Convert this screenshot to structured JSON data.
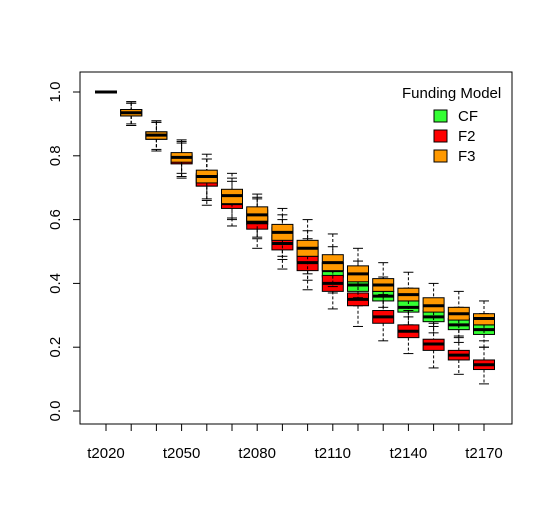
{
  "chart_data": {
    "type": "boxplot",
    "title": "",
    "xlabel": "",
    "ylabel": "",
    "ylim": [
      0,
      1
    ],
    "y_ticks": [
      0.0,
      0.2,
      0.4,
      0.6,
      0.8,
      1.0
    ],
    "y_tick_labels": [
      "0.0",
      "0.2",
      "0.4",
      "0.6",
      "0.8",
      "1.0"
    ],
    "x_categories": [
      "t2020",
      "t2030",
      "t2040",
      "t2050",
      "t2060",
      "t2070",
      "t2080",
      "t2090",
      "t2100",
      "t2110",
      "t2120",
      "t2130",
      "t2140",
      "t2150",
      "t2160",
      "t2170"
    ],
    "x_tick_labels_shown": [
      "t2020",
      "t2050",
      "t2080",
      "t2110",
      "t2140",
      "t2170"
    ],
    "legend": {
      "title": "Funding Model",
      "position": "top-right",
      "entries": [
        {
          "name": "CF",
          "color": "#33ff33"
        },
        {
          "name": "F2",
          "color": "#ff0000"
        },
        {
          "name": "F3",
          "color": "#ff9900"
        }
      ]
    },
    "series": [
      {
        "name": "CF",
        "color": "#33ff33",
        "boxes": [
          {
            "x": "t2020",
            "min": 1.0,
            "q1": 1.0,
            "median": 1.0,
            "q3": 1.0,
            "max": 1.0
          },
          {
            "x": "t2030",
            "min": 0.895,
            "q1": 0.925,
            "median": 0.935,
            "q3": 0.945,
            "max": 0.965
          },
          {
            "x": "t2040",
            "min": 0.815,
            "q1": 0.852,
            "median": 0.865,
            "q3": 0.875,
            "max": 0.905
          },
          {
            "x": "t2050",
            "min": 0.735,
            "q1": 0.775,
            "median": 0.79,
            "q3": 0.805,
            "max": 0.845
          },
          {
            "x": "t2060",
            "min": 0.66,
            "q1": 0.705,
            "median": 0.725,
            "q3": 0.745,
            "max": 0.79
          },
          {
            "x": "t2070",
            "min": 0.6,
            "q1": 0.645,
            "median": 0.665,
            "q3": 0.69,
            "max": 0.73
          },
          {
            "x": "t2080",
            "min": 0.54,
            "q1": 0.585,
            "median": 0.61,
            "q3": 0.63,
            "max": 0.67
          },
          {
            "x": "t2090",
            "min": 0.475,
            "q1": 0.535,
            "median": 0.55,
            "q3": 0.575,
            "max": 0.615
          },
          {
            "x": "t2100",
            "min": 0.41,
            "q1": 0.47,
            "median": 0.49,
            "q3": 0.515,
            "max": 0.565
          },
          {
            "x": "t2110",
            "min": 0.37,
            "q1": 0.42,
            "median": 0.44,
            "q3": 0.465,
            "max": 0.515
          },
          {
            "x": "t2120",
            "min": 0.33,
            "q1": 0.375,
            "median": 0.395,
            "q3": 0.42,
            "max": 0.47
          },
          {
            "x": "t2130",
            "min": 0.3,
            "q1": 0.345,
            "median": 0.36,
            "q3": 0.375,
            "max": 0.42
          },
          {
            "x": "t2140",
            "min": 0.27,
            "q1": 0.31,
            "median": 0.325,
            "q3": 0.345,
            "max": 0.385
          },
          {
            "x": "t2150",
            "min": 0.245,
            "q1": 0.28,
            "median": 0.295,
            "q3": 0.315,
            "max": 0.35
          },
          {
            "x": "t2160",
            "min": 0.215,
            "q1": 0.255,
            "median": 0.27,
            "q3": 0.29,
            "max": 0.325
          },
          {
            "x": "t2170",
            "min": 0.2,
            "q1": 0.24,
            "median": 0.255,
            "q3": 0.27,
            "max": 0.305
          }
        ]
      },
      {
        "name": "F2",
        "color": "#ff0000",
        "boxes": [
          {
            "x": "t2020",
            "min": 1.0,
            "q1": 1.0,
            "median": 1.0,
            "q3": 1.0,
            "max": 1.0
          },
          {
            "x": "t2030",
            "min": 0.895,
            "q1": 0.925,
            "median": 0.935,
            "q3": 0.945,
            "max": 0.965
          },
          {
            "x": "t2040",
            "min": 0.815,
            "q1": 0.852,
            "median": 0.865,
            "q3": 0.875,
            "max": 0.905
          },
          {
            "x": "t2050",
            "min": 0.73,
            "q1": 0.775,
            "median": 0.785,
            "q3": 0.8,
            "max": 0.84
          },
          {
            "x": "t2060",
            "min": 0.645,
            "q1": 0.705,
            "median": 0.72,
            "q3": 0.74,
            "max": 0.79
          },
          {
            "x": "t2070",
            "min": 0.58,
            "q1": 0.635,
            "median": 0.65,
            "q3": 0.67,
            "max": 0.72
          },
          {
            "x": "t2080",
            "min": 0.51,
            "q1": 0.57,
            "median": 0.59,
            "q3": 0.61,
            "max": 0.665
          },
          {
            "x": "t2090",
            "min": 0.445,
            "q1": 0.505,
            "median": 0.525,
            "q3": 0.55,
            "max": 0.6
          },
          {
            "x": "t2100",
            "min": 0.38,
            "q1": 0.44,
            "median": 0.465,
            "q3": 0.485,
            "max": 0.54
          },
          {
            "x": "t2110",
            "min": 0.32,
            "q1": 0.375,
            "median": 0.4,
            "q3": 0.425,
            "max": 0.475
          },
          {
            "x": "t2120",
            "min": 0.265,
            "q1": 0.33,
            "median": 0.35,
            "q3": 0.37,
            "max": 0.42
          },
          {
            "x": "t2130",
            "min": 0.22,
            "q1": 0.275,
            "median": 0.295,
            "q3": 0.315,
            "max": 0.365
          },
          {
            "x": "t2140",
            "min": 0.18,
            "q1": 0.23,
            "median": 0.25,
            "q3": 0.27,
            "max": 0.315
          },
          {
            "x": "t2150",
            "min": 0.135,
            "q1": 0.19,
            "median": 0.21,
            "q3": 0.225,
            "max": 0.275
          },
          {
            "x": "t2160",
            "min": 0.115,
            "q1": 0.16,
            "median": 0.175,
            "q3": 0.19,
            "max": 0.23
          },
          {
            "x": "t2170",
            "min": 0.085,
            "q1": 0.13,
            "median": 0.145,
            "q3": 0.16,
            "max": 0.2
          }
        ]
      },
      {
        "name": "F3",
        "color": "#ff9900",
        "boxes": [
          {
            "x": "t2020",
            "min": 1.0,
            "q1": 1.0,
            "median": 1.0,
            "q3": 1.0,
            "max": 1.0
          },
          {
            "x": "t2030",
            "min": 0.9,
            "q1": 0.925,
            "median": 0.935,
            "q3": 0.945,
            "max": 0.97
          },
          {
            "x": "t2040",
            "min": 0.82,
            "q1": 0.852,
            "median": 0.865,
            "q3": 0.875,
            "max": 0.91
          },
          {
            "x": "t2050",
            "min": 0.745,
            "q1": 0.78,
            "median": 0.795,
            "q3": 0.81,
            "max": 0.85
          },
          {
            "x": "t2060",
            "min": 0.665,
            "q1": 0.715,
            "median": 0.735,
            "q3": 0.755,
            "max": 0.805
          },
          {
            "x": "t2070",
            "min": 0.605,
            "q1": 0.65,
            "median": 0.675,
            "q3": 0.695,
            "max": 0.745
          },
          {
            "x": "t2080",
            "min": 0.545,
            "q1": 0.595,
            "median": 0.615,
            "q3": 0.64,
            "max": 0.68
          },
          {
            "x": "t2090",
            "min": 0.485,
            "q1": 0.535,
            "median": 0.56,
            "q3": 0.585,
            "max": 0.635
          },
          {
            "x": "t2100",
            "min": 0.43,
            "q1": 0.485,
            "median": 0.51,
            "q3": 0.535,
            "max": 0.6
          },
          {
            "x": "t2110",
            "min": 0.39,
            "q1": 0.44,
            "median": 0.465,
            "q3": 0.49,
            "max": 0.555
          },
          {
            "x": "t2120",
            "min": 0.355,
            "q1": 0.405,
            "median": 0.43,
            "q3": 0.455,
            "max": 0.51
          },
          {
            "x": "t2130",
            "min": 0.325,
            "q1": 0.375,
            "median": 0.395,
            "q3": 0.415,
            "max": 0.465
          },
          {
            "x": "t2140",
            "min": 0.295,
            "q1": 0.345,
            "median": 0.365,
            "q3": 0.385,
            "max": 0.435
          },
          {
            "x": "t2150",
            "min": 0.265,
            "q1": 0.31,
            "median": 0.33,
            "q3": 0.355,
            "max": 0.4
          },
          {
            "x": "t2160",
            "min": 0.235,
            "q1": 0.285,
            "median": 0.305,
            "q3": 0.325,
            "max": 0.375
          },
          {
            "x": "t2170",
            "min": 0.22,
            "q1": 0.27,
            "median": 0.29,
            "q3": 0.305,
            "max": 0.345
          }
        ]
      }
    ]
  }
}
